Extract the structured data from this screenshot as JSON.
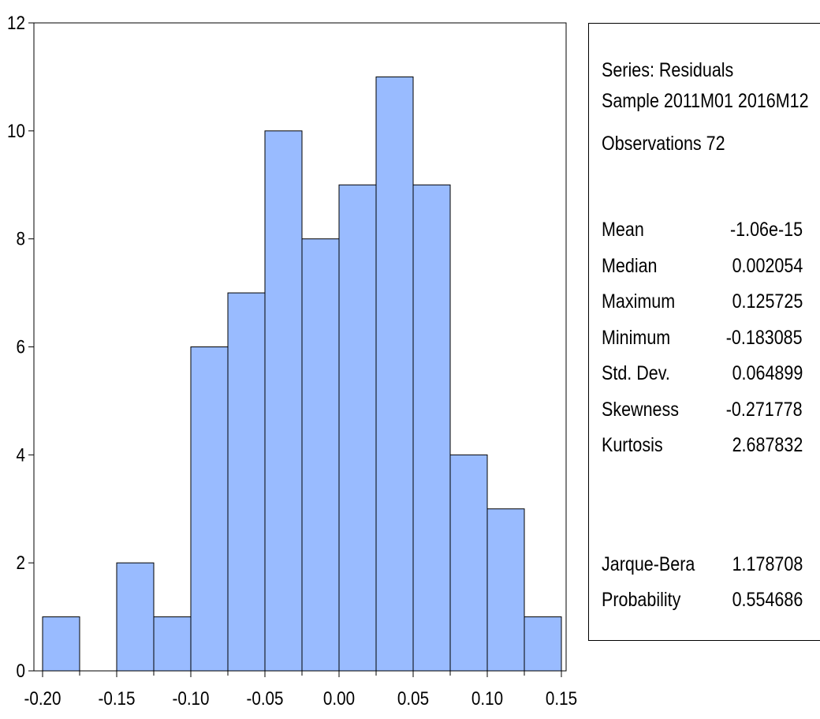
{
  "chart_data": {
    "type": "bar",
    "subtype": "histogram",
    "bin_edges": [
      -0.2,
      -0.175,
      -0.15,
      -0.125,
      -0.1,
      -0.075,
      -0.05,
      -0.025,
      0.0,
      0.025,
      0.05,
      0.075,
      0.1,
      0.125,
      0.15
    ],
    "values": [
      1,
      0,
      2,
      1,
      6,
      7,
      10,
      8,
      9,
      11,
      9,
      4,
      3,
      1
    ],
    "x_ticks": [
      "-0.20",
      "-0.15",
      "-0.10",
      "-0.05",
      "0.00",
      "0.05",
      "0.10",
      "0.15"
    ],
    "y_ticks": [
      "0",
      "2",
      "4",
      "6",
      "8",
      "10",
      "12"
    ],
    "xlim": [
      -0.2,
      0.15
    ],
    "ylim": [
      0,
      12
    ],
    "bar_color": "#99bbff",
    "edge_color": "#000000",
    "grid": false,
    "title": "",
    "xlabel": "",
    "ylabel": ""
  },
  "stats": {
    "header": {
      "series": "Series: Residuals",
      "sample": "Sample 2011M01 2016M12",
      "observations": "Observations 72"
    },
    "rows": [
      {
        "label": "Mean",
        "value": "-1.06e-15"
      },
      {
        "label": "Median",
        "value": "0.002054"
      },
      {
        "label": "Maximum",
        "value": "0.125725"
      },
      {
        "label": "Minimum",
        "value": "-0.183085"
      },
      {
        "label": "Std. Dev.",
        "value": "0.064899"
      },
      {
        "label": "Skewness",
        "value": "-0.271778"
      },
      {
        "label": "Kurtosis",
        "value": "2.687832"
      }
    ],
    "test_rows": [
      {
        "label": "Jarque-Bera",
        "value": "1.178708"
      },
      {
        "label": "Probability",
        "value": "0.554686"
      }
    ]
  }
}
